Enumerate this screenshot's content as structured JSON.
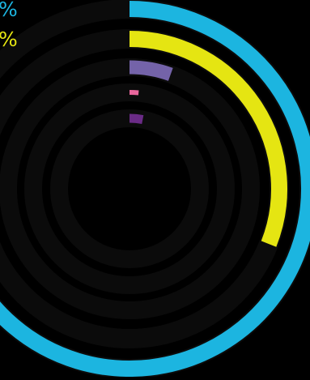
{
  "chart_data": {
    "type": "radial-bar",
    "max": 100,
    "track_color": "#0b0b0b",
    "background": "#000000",
    "series": [
      {
        "value": 82,
        "color": "#1cb5e0"
      },
      {
        "value": 31,
        "color": "#e5e512"
      },
      {
        "value": 5.5,
        "color": "#7463a9"
      },
      {
        "value": 1.5,
        "color": "#e8669c"
      },
      {
        "value": 3,
        "color": "#6a2b86"
      }
    ],
    "labels": [
      {
        "text": "%",
        "color": "#1cb5e0"
      },
      {
        "text": "%",
        "color": "#e5e512"
      }
    ]
  }
}
